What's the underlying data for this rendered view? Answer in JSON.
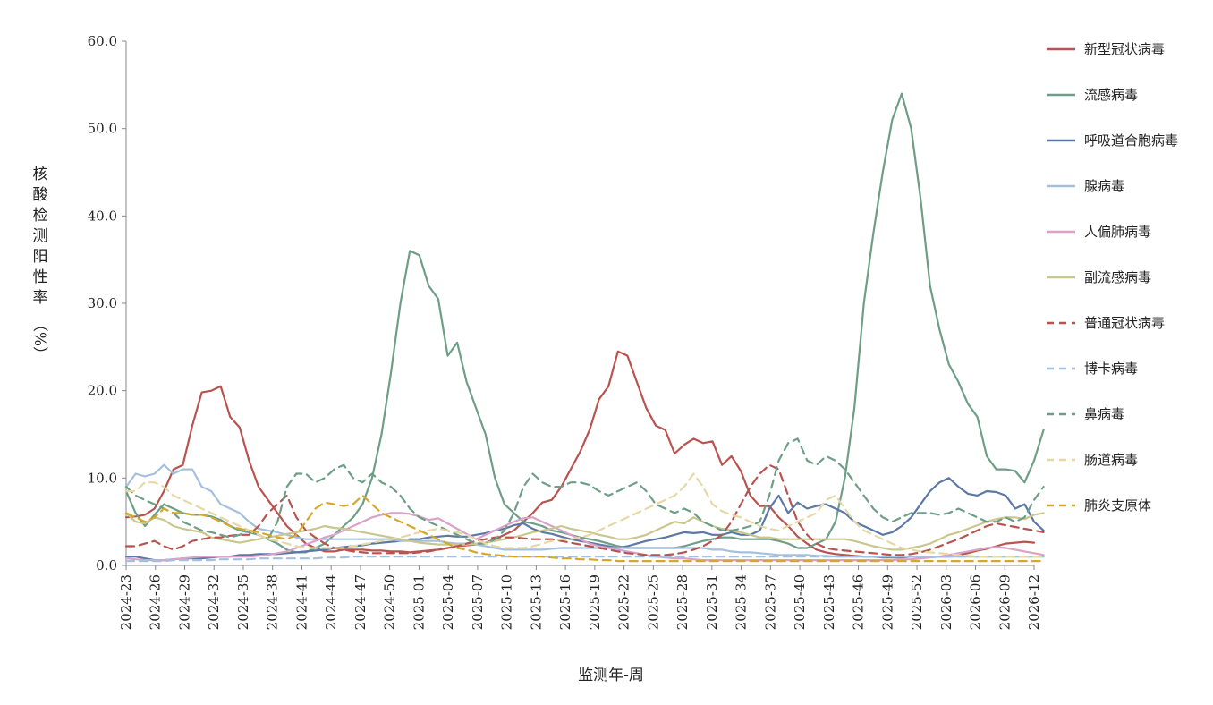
{
  "chart_data": {
    "type": "line",
    "title": "",
    "xlabel": "监测年-周",
    "ylabel_chars": [
      "核",
      "酸",
      "检",
      "测",
      "阳",
      "性",
      "率",
      "（%）"
    ],
    "ylim": [
      0,
      60
    ],
    "yticks": [
      "0.0",
      "10.0",
      "20.0",
      "30.0",
      "40.0",
      "50.0",
      "60.0"
    ],
    "xtick_labels": [
      "2024-23",
      "2024-26",
      "2024-29",
      "2024-32",
      "2024-35",
      "2024-38",
      "2024-41",
      "2024-44",
      "2024-47",
      "2024-50",
      "2025-01",
      "2025-04",
      "2025-07",
      "2025-10",
      "2025-13",
      "2025-16",
      "2025-19",
      "2025-22",
      "2025-25",
      "2025-28",
      "2025-31",
      "2025-34",
      "2025-37",
      "2025-40",
      "2025-43",
      "2025-46",
      "2025-49",
      "2025-52",
      "2026-03",
      "2026-06",
      "2026-09",
      "2026-12"
    ],
    "grid": false,
    "legend_position": "right",
    "series": [
      {
        "name": "新型冠状病毒",
        "color": "#b85450",
        "dash": false,
        "values": [
          5.5,
          5.6,
          5.8,
          6.5,
          8.5,
          11,
          11.5,
          16,
          19.8,
          20,
          20.5,
          17,
          15.8,
          12,
          9,
          7.5,
          6,
          4.5,
          3.5,
          2.5,
          2,
          1.6,
          1.6,
          1.8,
          1.8,
          1.8,
          1.7,
          1.7,
          1.6,
          1.6,
          1.5,
          1.6,
          1.7,
          1.8,
          2,
          2.2,
          2.3,
          2.4,
          2.6,
          3,
          3.5,
          4,
          5,
          6,
          7.2,
          7.5,
          9,
          11,
          13,
          15.5,
          19,
          20.5,
          24.5,
          24,
          21,
          18,
          16,
          15.5,
          12.8,
          13.8,
          14.5,
          14,
          14.2,
          11.5,
          12.5,
          10.8,
          8,
          6.8,
          6.8,
          5.5,
          4.5,
          3.3,
          2.5,
          1.8,
          1.5,
          1.3,
          1.2,
          1.1,
          1,
          1,
          0.9,
          0.9,
          0.9,
          1,
          1,
          1,
          1,
          1,
          1.2,
          1.4,
          1.7,
          1.9,
          2.2,
          2.5,
          2.6,
          2.7,
          2.6
        ]
      },
      {
        "name": "流感病毒",
        "color": "#6e9e87",
        "dash": false,
        "values": [
          8.5,
          6,
          4.5,
          5.8,
          7,
          6.5,
          6,
          5.8,
          5.8,
          5.6,
          5.2,
          4.5,
          4,
          3.8,
          3.5,
          3,
          2.5,
          1.8,
          1.5,
          1.5,
          2,
          2.5,
          3.5,
          4.5,
          5.5,
          7,
          10,
          15,
          22,
          30,
          36,
          35.5,
          32,
          30.5,
          24,
          25.5,
          21,
          18,
          15,
          10,
          7,
          6,
          5,
          4.8,
          4.5,
          4,
          3.8,
          3.5,
          3.2,
          3,
          2.8,
          2.5,
          2.2,
          2,
          2,
          2,
          2,
          2,
          2,
          2.2,
          2.5,
          2.8,
          3,
          3.2,
          3.2,
          3,
          3,
          3,
          3,
          2.8,
          2.5,
          2,
          2,
          2.5,
          3,
          5,
          10,
          18,
          30,
          38,
          45,
          51,
          54,
          50,
          42,
          32,
          27,
          23,
          21,
          18.5,
          17,
          12.5,
          11,
          11,
          10.8,
          9.5,
          12,
          15.5
        ]
      },
      {
        "name": "呼吸道合胞病毒",
        "color": "#5b79a3",
        "dash": false,
        "values": [
          1,
          1,
          0.8,
          0.6,
          0.6,
          0.7,
          0.8,
          0.8,
          0.8,
          0.9,
          1,
          1,
          1.2,
          1.2,
          1.3,
          1.3,
          1.3,
          1.4,
          1.5,
          1.6,
          1.7,
          1.8,
          2,
          2.1,
          2.2,
          2.3,
          2.5,
          2.6,
          2.7,
          2.8,
          3,
          3,
          3.2,
          3.3,
          3.4,
          3.3,
          3.3,
          3.5,
          3.7,
          4,
          4.2,
          4.6,
          4.8,
          4.2,
          3.8,
          3.6,
          3.3,
          3,
          2.8,
          2.6,
          2.4,
          2.2,
          2,
          2.2,
          2.5,
          2.8,
          3,
          3.2,
          3.5,
          3.8,
          3.7,
          3.8,
          3.5,
          3.5,
          3.8,
          3.5,
          3.5,
          4,
          6.5,
          8,
          6,
          7.2,
          6.5,
          6.8,
          7,
          6.5,
          6,
          5,
          4.5,
          4,
          3.5,
          3.8,
          4.5,
          5.5,
          7,
          8.5,
          9.5,
          10,
          9,
          8.2,
          8,
          8.5,
          8.4,
          8,
          6.5,
          7,
          5,
          4
        ]
      },
      {
        "name": "腺病毒",
        "color": "#a5c0dd",
        "dash": false,
        "values": [
          9,
          10.5,
          10.2,
          10.5,
          11.5,
          10.5,
          11,
          11,
          9,
          8.5,
          7,
          6.5,
          6,
          5,
          4.2,
          4,
          3.8,
          3.5,
          3.2,
          3,
          3,
          3,
          3,
          3,
          3,
          3,
          3,
          3,
          3,
          2.8,
          2.8,
          2.8,
          2.8,
          2.8,
          2.6,
          2.5,
          2.5,
          2.4,
          2.2,
          2,
          1.8,
          1.8,
          1.8,
          1.8,
          1.8,
          1.9,
          2,
          2,
          2,
          2,
          2,
          2,
          2,
          2,
          2,
          2,
          2,
          2,
          2,
          2,
          2,
          2,
          1.8,
          1.8,
          1.6,
          1.5,
          1.5,
          1.4,
          1.3,
          1.2,
          1.2,
          1.2,
          1.2,
          1.1,
          1.1,
          1,
          1,
          1,
          1,
          1,
          1,
          1,
          1,
          1,
          1,
          1,
          1,
          1,
          1,
          1,
          1,
          1,
          1,
          1,
          1,
          1,
          1,
          1
        ]
      },
      {
        "name": "人偏肺病毒",
        "color": "#d9a2c9",
        "dash": false,
        "values": [
          0.8,
          0.7,
          0.6,
          0.6,
          0.6,
          0.7,
          0.8,
          0.9,
          1,
          1,
          1,
          1,
          1,
          1,
          1.1,
          1.2,
          1.4,
          1.6,
          2,
          2.4,
          2.8,
          3.2,
          3.5,
          4,
          4.5,
          5,
          5.5,
          5.8,
          6,
          6,
          5.9,
          5.6,
          5.2,
          5.4,
          4.8,
          4.2,
          3.6,
          3,
          3.5,
          4,
          4.5,
          5,
          5.4,
          5.5,
          5,
          4.5,
          4,
          3.5,
          3,
          2.5,
          2.2,
          2,
          1.8,
          1.6,
          1.4,
          1.2,
          1,
          0.9,
          0.8,
          0.8,
          0.7,
          0.6,
          0.6,
          0.6,
          0.6,
          0.6,
          0.6,
          0.6,
          0.6,
          0.6,
          0.6,
          0.6,
          0.6,
          0.6,
          0.6,
          0.6,
          0.6,
          0.6,
          0.6,
          0.6,
          0.6,
          0.6,
          0.7,
          0.7,
          0.8,
          0.9,
          1,
          1.2,
          1.4,
          1.6,
          1.8,
          2,
          2.1,
          2,
          1.8,
          1.6,
          1.4,
          1.2
        ]
      },
      {
        "name": "副流感病毒",
        "color": "#c9c78f",
        "dash": false,
        "values": [
          6,
          5,
          4.8,
          5.5,
          5.2,
          4.5,
          4.2,
          4,
          3.8,
          3.2,
          3,
          2.8,
          2.6,
          2.8,
          3,
          3.2,
          3.4,
          3.6,
          3.8,
          4,
          4.2,
          4.5,
          4.3,
          4.2,
          4,
          3.8,
          3.6,
          3.4,
          3.2,
          3,
          2.8,
          2.6,
          2.5,
          2.4,
          2.4,
          2.4,
          2.4,
          2.5,
          2.6,
          2.8,
          3,
          3.2,
          3.5,
          3.8,
          4,
          4.2,
          4.5,
          4.2,
          4,
          3.8,
          3.5,
          3.3,
          3,
          3,
          3.2,
          3.5,
          4,
          4.5,
          5,
          4.8,
          5.5,
          5,
          4.5,
          4.2,
          4,
          3.8,
          3.5,
          3.2,
          3.2,
          3,
          3,
          3,
          3,
          3,
          3,
          3,
          3,
          2.8,
          2.5,
          2.2,
          2,
          1.8,
          1.8,
          2,
          2.2,
          2.5,
          3,
          3.5,
          3.8,
          4.2,
          4.6,
          5,
          5.3,
          5.5,
          5.5,
          5.3,
          5.8,
          6
        ]
      },
      {
        "name": "普通冠状病毒",
        "color": "#b85450",
        "dash": true,
        "values": [
          2.2,
          2.2,
          2.5,
          2.8,
          2.2,
          1.8,
          2.2,
          2.8,
          3,
          3.2,
          3.2,
          3.4,
          3.5,
          3.5,
          4.5,
          6,
          7,
          8,
          5.5,
          4,
          3.2,
          2.5,
          2,
          1.8,
          1.6,
          1.5,
          1.4,
          1.4,
          1.4,
          1.4,
          1.4,
          1.5,
          1.6,
          1.8,
          2,
          2.2,
          2.5,
          2.8,
          3,
          3.2,
          3.2,
          3.2,
          3.1,
          3,
          3,
          3,
          2.8,
          2.6,
          2.4,
          2.2,
          2,
          1.8,
          1.6,
          1.4,
          1.3,
          1.2,
          1.2,
          1.2,
          1.3,
          1.5,
          1.8,
          2.2,
          2.8,
          3.5,
          5,
          7,
          9,
          10.5,
          11.5,
          11,
          8,
          5,
          3.5,
          2.5,
          2,
          1.8,
          1.7,
          1.6,
          1.5,
          1.4,
          1.3,
          1.2,
          1.2,
          1.3,
          1.5,
          1.8,
          2.2,
          2.6,
          3,
          3.5,
          4,
          4.5,
          4.8,
          4.6,
          4.4,
          4.2,
          4,
          3.8
        ]
      },
      {
        "name": "博卡病毒",
        "color": "#a5c0dd",
        "dash": true,
        "values": [
          0.5,
          0.5,
          0.5,
          0.5,
          0.5,
          0.6,
          0.6,
          0.6,
          0.6,
          0.6,
          0.7,
          0.7,
          0.7,
          0.7,
          0.8,
          0.8,
          0.8,
          0.8,
          0.8,
          0.8,
          0.8,
          0.9,
          0.9,
          0.9,
          1,
          1,
          1,
          1,
          1,
          1,
          1,
          1,
          1,
          1,
          1,
          1,
          1,
          1,
          1,
          1,
          1,
          1,
          1,
          1,
          1,
          1,
          1,
          1,
          1,
          1,
          1,
          1,
          1,
          1,
          1,
          1,
          1,
          1,
          1,
          1,
          1,
          1,
          1,
          1,
          1,
          1,
          1,
          1,
          1,
          1,
          1,
          1,
          1,
          1,
          1,
          1,
          1,
          1,
          1,
          1,
          1,
          1,
          1,
          1,
          1,
          1,
          1,
          1,
          1,
          1,
          1,
          1,
          1,
          1,
          1,
          1,
          1,
          1
        ]
      },
      {
        "name": "鼻病毒",
        "color": "#6e9e87",
        "dash": true,
        "values": [
          9,
          8,
          7.5,
          7,
          6.5,
          6,
          5,
          4.5,
          4,
          3.8,
          3.5,
          3.2,
          3.5,
          4,
          3.5,
          3,
          5,
          9,
          10.5,
          10.5,
          9.5,
          10,
          11,
          11.5,
          10,
          9.5,
          10.5,
          9.5,
          9,
          8,
          6.5,
          5.5,
          5,
          4.5,
          4,
          3.5,
          3,
          2.5,
          2.5,
          3,
          4,
          6,
          9,
          10.5,
          9.5,
          9,
          9,
          9.5,
          9.5,
          9.2,
          8.5,
          8,
          8.5,
          9,
          9.5,
          8.5,
          7,
          6.5,
          6,
          6.5,
          6,
          5,
          4.5,
          4,
          4,
          4.2,
          4.5,
          5,
          8,
          12,
          14,
          14.5,
          12,
          11.5,
          12.5,
          12,
          11,
          9.5,
          8,
          6.5,
          5.5,
          5,
          5.5,
          6,
          6,
          6,
          5.8,
          6,
          6.5,
          6,
          5.5,
          5,
          5,
          5.5,
          5,
          5.5,
          7.5,
          9
        ]
      },
      {
        "name": "肠道病毒",
        "color": "#e6d8a6",
        "dash": true,
        "values": [
          8.5,
          8.5,
          9.5,
          9.5,
          9,
          8,
          7.5,
          7,
          6.5,
          6,
          5.5,
          5,
          4.5,
          4,
          3.5,
          3,
          2.8,
          2.5,
          2.2,
          2,
          2,
          2,
          2,
          2,
          2.2,
          2.4,
          2.6,
          2.8,
          3,
          3.2,
          3.5,
          3.8,
          4,
          4.2,
          4,
          3.8,
          3.5,
          3,
          2.5,
          2.2,
          2,
          2,
          2,
          2.2,
          2.5,
          2.8,
          3,
          3,
          3.2,
          3.5,
          4,
          4.5,
          5,
          5.5,
          6,
          6.5,
          7,
          7.5,
          8,
          9,
          10.5,
          9,
          7,
          6.2,
          5.8,
          5.5,
          5,
          4.5,
          4.2,
          4,
          4.5,
          5,
          5.5,
          6,
          7.5,
          8,
          6.5,
          5,
          4,
          3.5,
          3,
          2.5,
          2,
          1.8,
          1.6,
          1.5,
          1.4,
          1.3,
          1.2,
          1.1,
          1,
          1,
          1,
          1,
          1,
          1,
          1,
          1
        ]
      },
      {
        "name": "肺炎支原体",
        "color": "#d4a82a",
        "dash": true,
        "values": [
          6,
          5.5,
          5,
          5.5,
          6.5,
          6,
          6,
          5.8,
          5.8,
          5.5,
          5,
          4.5,
          4.2,
          4,
          3.8,
          3.5,
          3.2,
          3,
          3.5,
          5,
          6.5,
          7.2,
          7,
          6.8,
          7,
          8,
          7,
          6,
          5.5,
          5,
          4.5,
          4,
          3.5,
          3,
          2.5,
          2,
          1.8,
          1.5,
          1.3,
          1.2,
          1.1,
          1,
          1,
          1,
          1,
          0.9,
          0.8,
          0.8,
          0.7,
          0.7,
          0.6,
          0.6,
          0.5,
          0.5,
          0.5,
          0.5,
          0.5,
          0.5,
          0.5,
          0.5,
          0.5,
          0.5,
          0.5,
          0.5,
          0.5,
          0.5,
          0.5,
          0.5,
          0.5,
          0.5,
          0.5,
          0.5,
          0.5,
          0.5,
          0.5,
          0.5,
          0.5,
          0.5,
          0.5,
          0.5,
          0.5,
          0.5,
          0.5,
          0.5,
          0.5,
          0.5,
          0.5,
          0.5,
          0.5,
          0.5,
          0.5,
          0.5,
          0.5,
          0.5,
          0.5,
          0.5,
          0.5,
          0.5
        ]
      }
    ]
  }
}
